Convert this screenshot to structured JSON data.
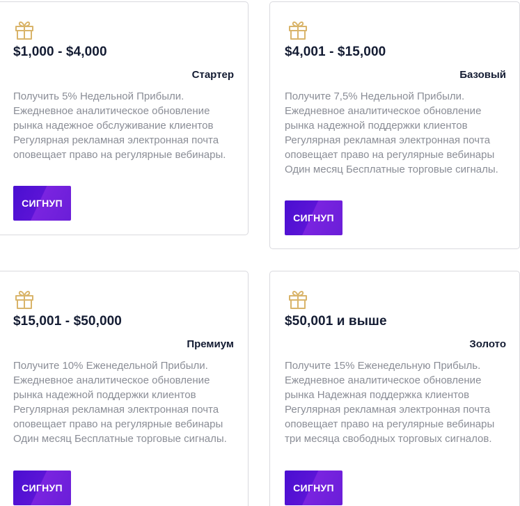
{
  "colors": {
    "accent": "#5b14d6",
    "gift_icon": "#d9b46a",
    "heading_text": "#141c33",
    "body_text": "#8a8d96"
  },
  "plans": [
    {
      "icon": "gift-icon",
      "price": "$1,000 - $4,000",
      "name": "Стартер",
      "description": "Получить 5% Недельной Прибыли. Ежедневное аналитическое обновление рынка надежное обслуживание клиентов Регулярная рекламная электронная почта оповещает право на регулярные вебинары.",
      "button_label": "СИГНУП"
    },
    {
      "icon": "gift-icon",
      "price": "$4,001 - $15,000",
      "name": "Базовый",
      "description": "Получите 7,5% Недельной Прибыли. Ежедневное аналитическое обновление рынка надежной поддержки клиентов Регулярная рекламная электронная почта оповещает право на регулярные вебинары Один месяц Бесплатные торговые сигналы.",
      "button_label": "СИГНУП"
    },
    {
      "icon": "gift-icon",
      "price": "$15,001 - $50,000",
      "name": "Премиум",
      "description": "Получите 10% Еженедельной Прибыли. Ежедневное аналитическое обновление рынка надежной поддержки клиентов Регулярная рекламная электронная почта оповещает право на регулярные вебинары Один месяц Бесплатные торговые сигналы.",
      "button_label": "СИГНУП"
    },
    {
      "icon": "gift-icon",
      "price": "$50,001 и выше",
      "name": "Золото",
      "description": "Получите 15% Еженедельную Прибыль. Ежедневное аналитическое обновление рынка Надежная поддержка клиентов Регулярная рекламная электронная почта оповещает право на регулярные вебинары три месяца свободных торговых сигналов.",
      "button_label": "СИГНУП"
    }
  ]
}
